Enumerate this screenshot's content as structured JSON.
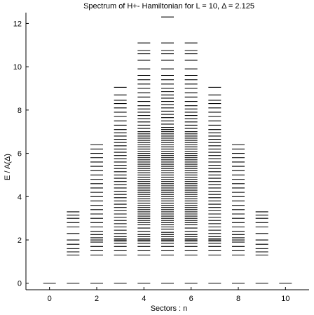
{
  "chart_data": {
    "type": "scatter",
    "marker": "horizontal-dash",
    "title": "Spectrum of H+- Hamiltonian for L = 10, Δ = 2.125",
    "xlabel": "Sectors : n",
    "ylabel": "E / A(Δ)",
    "xlim": [
      -1,
      11
    ],
    "ylim": [
      -0.3,
      12.5
    ],
    "xticks": [
      0,
      2,
      4,
      6,
      8,
      10
    ],
    "yticks": [
      0,
      2,
      4,
      6,
      8,
      10,
      12
    ],
    "xtick_labels": [
      "0",
      "2",
      "4",
      "6",
      "8",
      "10"
    ],
    "ytick_labels": [
      "0",
      "2",
      "4",
      "6",
      "8",
      "10",
      "12"
    ],
    "grid": false,
    "sectors": [
      {
        "n": 0,
        "levels": [
          0.0
        ]
      },
      {
        "n": 1,
        "levels": [
          0.0,
          1.3,
          1.45,
          1.6,
          1.8,
          2.0,
          2.3,
          2.6,
          2.8,
          3.0,
          3.15,
          3.3
        ]
      },
      {
        "n": 2,
        "levels": [
          0.0,
          1.3,
          1.5,
          1.7,
          1.9,
          2.0,
          2.1,
          2.25,
          2.4,
          2.6,
          2.8,
          3.0,
          3.2,
          3.4,
          3.6,
          3.8,
          4.0,
          4.2,
          4.4,
          4.6,
          4.8,
          5.0,
          5.2,
          5.4,
          5.6,
          5.8,
          6.0,
          6.2,
          6.4
        ]
      },
      {
        "n": 3,
        "levels": [
          0.0,
          1.3,
          1.5,
          1.7,
          1.85,
          1.95,
          2.0,
          2.05,
          2.15,
          2.3,
          2.45,
          2.6,
          2.75,
          2.9,
          3.05,
          3.2,
          3.35,
          3.5,
          3.65,
          3.8,
          3.95,
          4.1,
          4.25,
          4.4,
          4.55,
          4.7,
          4.85,
          5.0,
          5.15,
          5.3,
          5.45,
          5.6,
          5.75,
          5.9,
          6.05,
          6.2,
          6.35,
          6.5,
          6.65,
          6.8,
          6.95,
          7.1,
          7.3,
          7.5,
          7.7,
          7.9,
          8.1,
          8.3,
          8.45,
          8.7,
          9.05
        ]
      },
      {
        "n": 4,
        "levels": [
          0.0,
          1.3,
          1.5,
          1.7,
          1.85,
          1.95,
          2.0,
          2.05,
          2.15,
          2.25,
          2.4,
          2.55,
          2.7,
          2.8,
          2.9,
          3.0,
          3.1,
          3.2,
          3.3,
          3.4,
          3.5,
          3.6,
          3.7,
          3.8,
          3.9,
          4.0,
          4.1,
          4.2,
          4.3,
          4.4,
          4.5,
          4.6,
          4.7,
          4.8,
          4.9,
          5.0,
          5.1,
          5.2,
          5.3,
          5.4,
          5.5,
          5.6,
          5.7,
          5.8,
          5.9,
          6.0,
          6.1,
          6.2,
          6.3,
          6.4,
          6.5,
          6.6,
          6.7,
          6.8,
          6.9,
          7.0,
          7.15,
          7.3,
          7.45,
          7.6,
          7.75,
          7.9,
          8.05,
          8.2,
          8.4,
          8.6,
          8.8,
          9.0,
          9.2,
          9.4,
          9.6,
          9.9,
          10.3,
          10.6,
          10.75,
          11.1
        ]
      },
      {
        "n": 5,
        "levels": [
          0.0,
          1.3,
          1.5,
          1.7,
          1.85,
          1.95,
          2.0,
          2.05,
          2.15,
          2.25,
          2.35,
          2.5,
          2.6,
          2.7,
          2.8,
          2.9,
          3.0,
          3.1,
          3.2,
          3.3,
          3.4,
          3.5,
          3.6,
          3.7,
          3.8,
          3.9,
          4.0,
          4.1,
          4.2,
          4.3,
          4.4,
          4.5,
          4.6,
          4.7,
          4.8,
          4.9,
          5.0,
          5.1,
          5.2,
          5.3,
          5.4,
          5.5,
          5.6,
          5.7,
          5.8,
          5.9,
          6.0,
          6.1,
          6.2,
          6.3,
          6.4,
          6.5,
          6.6,
          6.7,
          6.8,
          6.9,
          7.0,
          7.1,
          7.2,
          7.35,
          7.5,
          7.65,
          7.8,
          7.95,
          8.1,
          8.25,
          8.4,
          8.55,
          8.7,
          8.85,
          9.0,
          9.2,
          9.4,
          9.6,
          9.9,
          10.3,
          10.6,
          10.75,
          11.1,
          12.3
        ]
      },
      {
        "n": 6,
        "levels": [
          0.0,
          1.3,
          1.5,
          1.7,
          1.85,
          1.95,
          2.0,
          2.05,
          2.15,
          2.25,
          2.4,
          2.55,
          2.7,
          2.8,
          2.9,
          3.0,
          3.1,
          3.2,
          3.3,
          3.4,
          3.5,
          3.6,
          3.7,
          3.8,
          3.9,
          4.0,
          4.1,
          4.2,
          4.3,
          4.4,
          4.5,
          4.6,
          4.7,
          4.8,
          4.9,
          5.0,
          5.1,
          5.2,
          5.3,
          5.4,
          5.5,
          5.6,
          5.7,
          5.8,
          5.9,
          6.0,
          6.1,
          6.2,
          6.3,
          6.4,
          6.5,
          6.6,
          6.7,
          6.8,
          6.9,
          7.0,
          7.15,
          7.3,
          7.45,
          7.6,
          7.75,
          7.9,
          8.05,
          8.2,
          8.4,
          8.6,
          8.8,
          9.0,
          9.2,
          9.4,
          9.6,
          9.9,
          10.3,
          10.6,
          10.75,
          11.1
        ]
      },
      {
        "n": 7,
        "levels": [
          0.0,
          1.3,
          1.5,
          1.7,
          1.85,
          1.95,
          2.0,
          2.05,
          2.15,
          2.3,
          2.45,
          2.6,
          2.75,
          2.9,
          3.05,
          3.2,
          3.35,
          3.5,
          3.65,
          3.8,
          3.95,
          4.1,
          4.25,
          4.4,
          4.55,
          4.7,
          4.85,
          5.0,
          5.15,
          5.3,
          5.45,
          5.6,
          5.75,
          5.9,
          6.05,
          6.2,
          6.35,
          6.5,
          6.65,
          6.8,
          6.95,
          7.1,
          7.3,
          7.5,
          7.7,
          7.9,
          8.1,
          8.3,
          8.45,
          8.7,
          9.05
        ]
      },
      {
        "n": 8,
        "levels": [
          0.0,
          1.3,
          1.5,
          1.7,
          1.9,
          2.0,
          2.1,
          2.25,
          2.4,
          2.6,
          2.8,
          3.0,
          3.2,
          3.4,
          3.6,
          3.8,
          4.0,
          4.2,
          4.4,
          4.6,
          4.8,
          5.0,
          5.2,
          5.4,
          5.6,
          5.8,
          6.0,
          6.2,
          6.4
        ]
      },
      {
        "n": 9,
        "levels": [
          0.0,
          1.3,
          1.45,
          1.6,
          1.8,
          2.0,
          2.3,
          2.6,
          2.8,
          3.0,
          3.15,
          3.3
        ]
      },
      {
        "n": 10,
        "levels": [
          0.0
        ]
      }
    ]
  }
}
